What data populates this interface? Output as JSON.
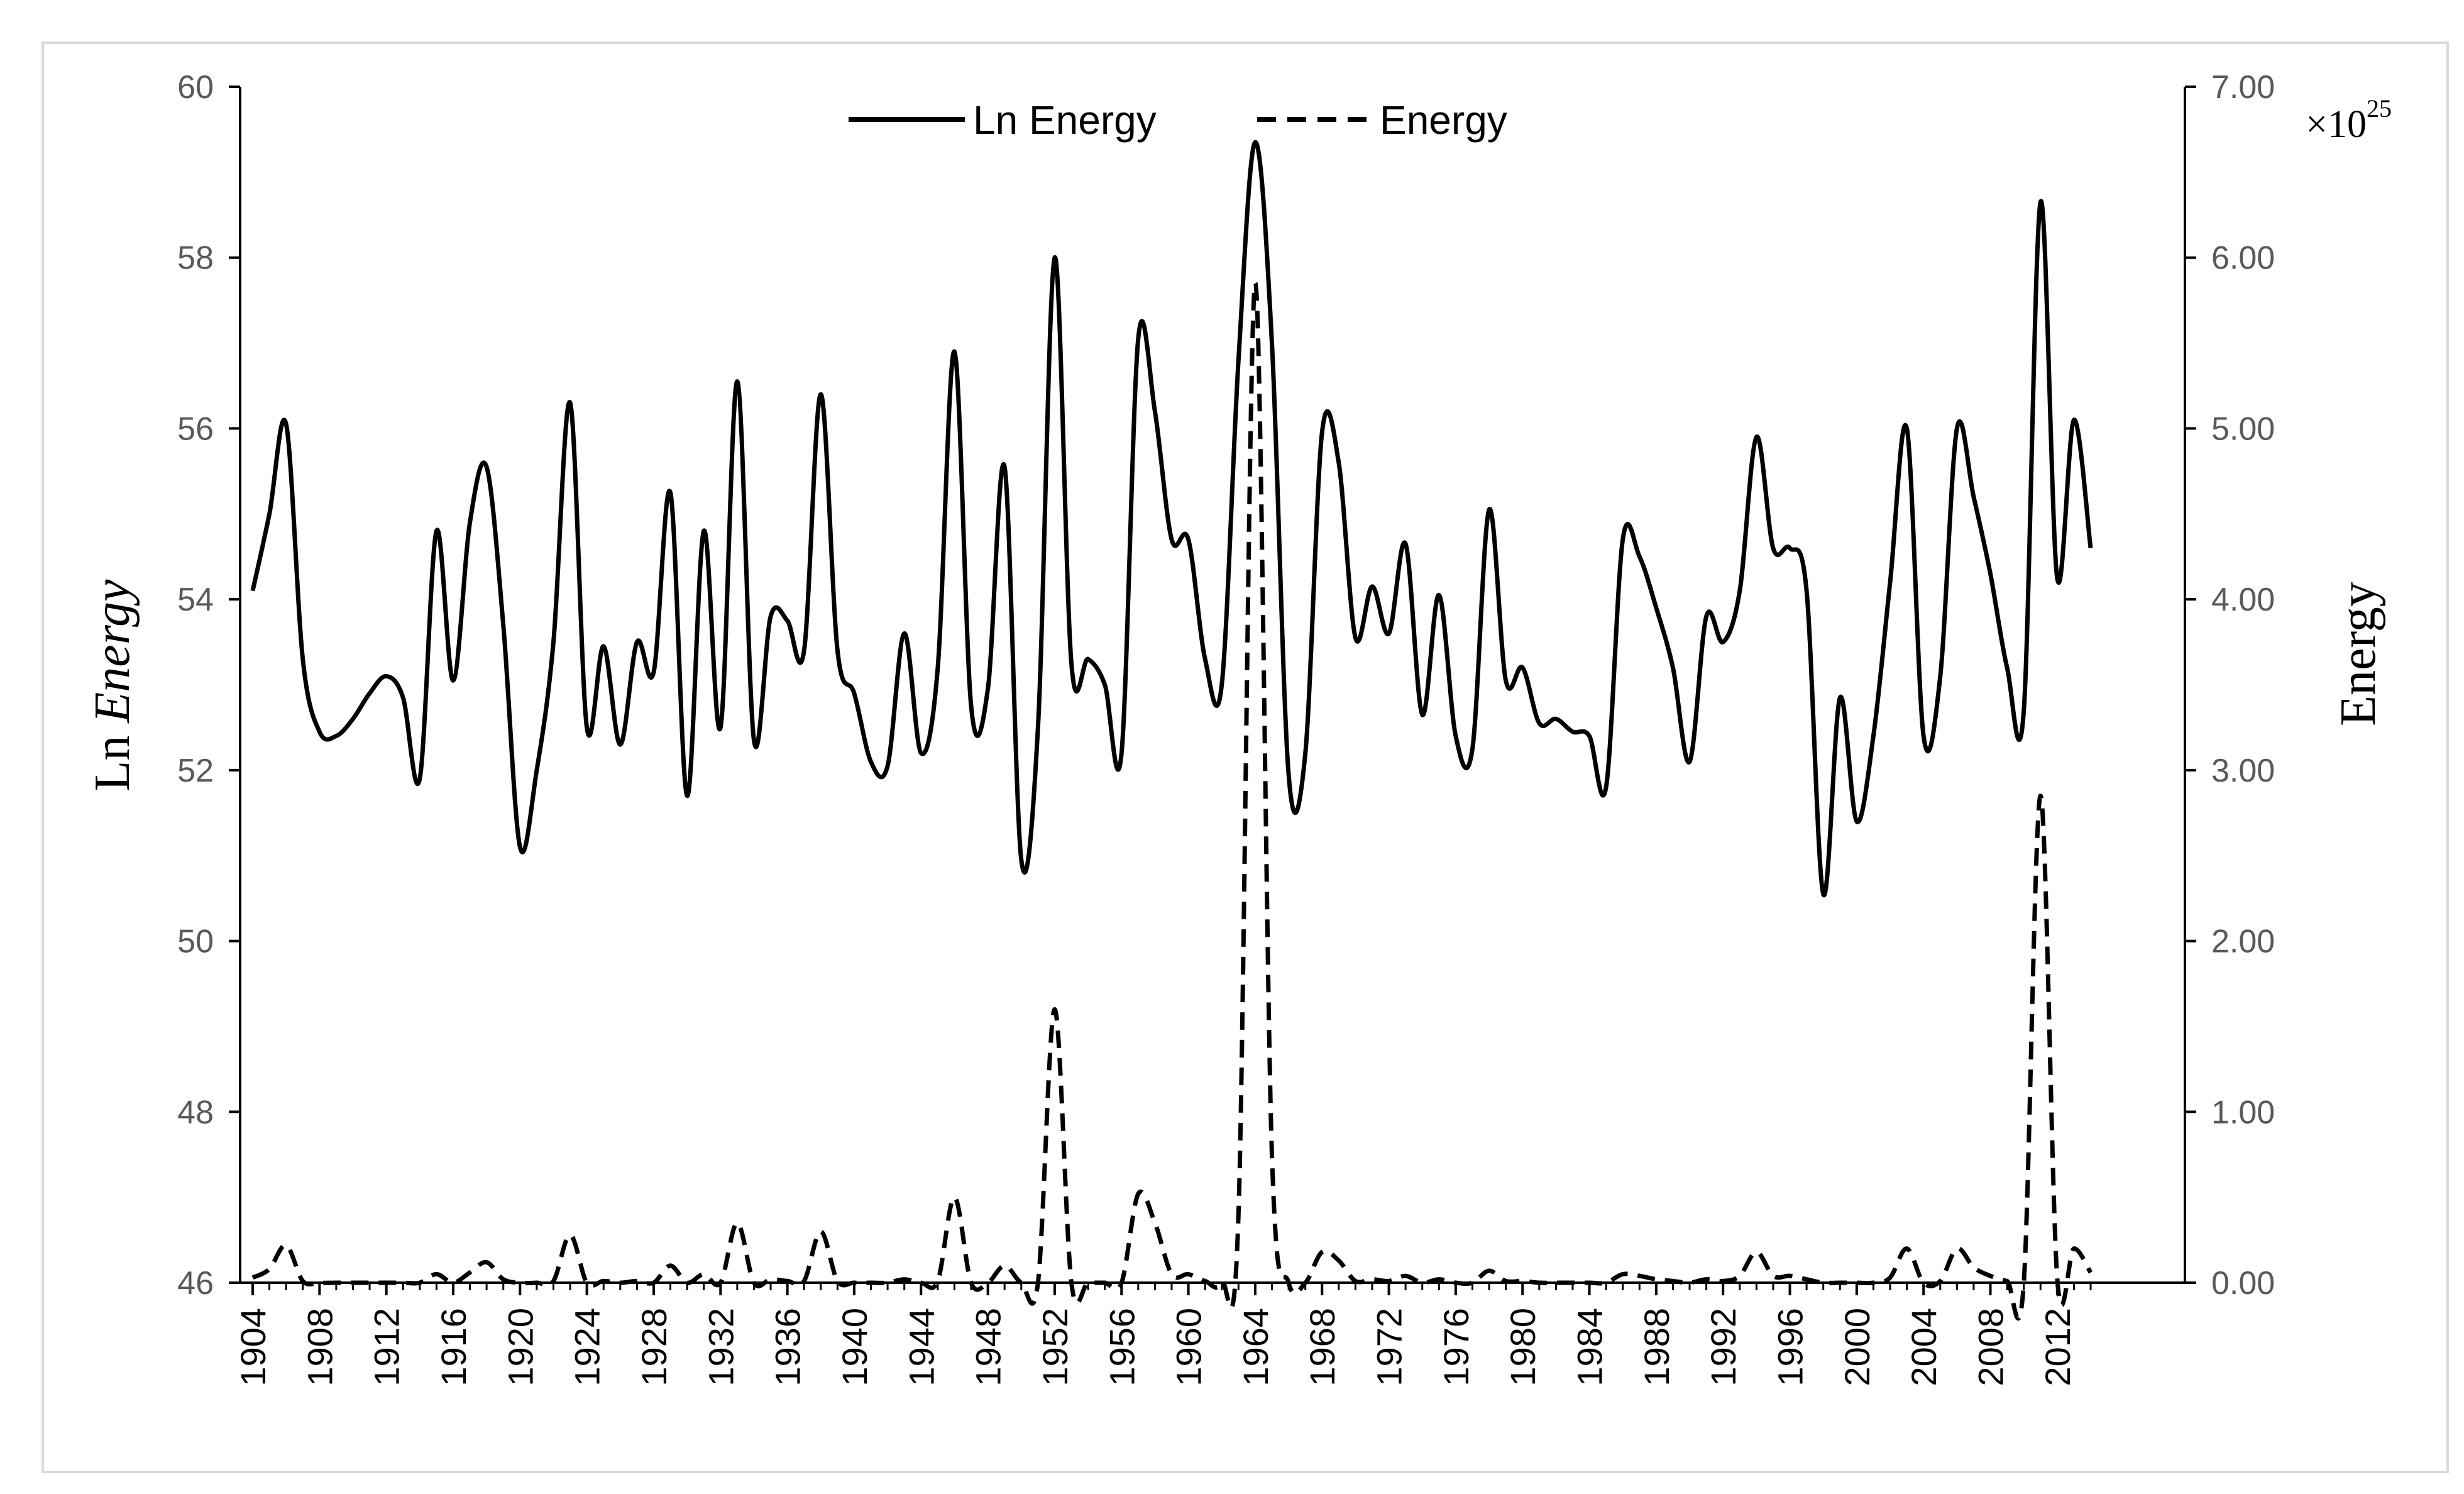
{
  "chart_data": {
    "type": "line",
    "title": "",
    "xlabel": "",
    "ylabel_left_prefix": "Ln ",
    "ylabel_left_italic": "Energy",
    "ylabel_right": "Energy",
    "right_axis_multiplier": "×10",
    "right_axis_exponent": "25",
    "x_range": [
      1904,
      2014
    ],
    "x_ticks": [
      "1904",
      "1908",
      "1912",
      "1916",
      "1920",
      "1924",
      "1928",
      "1932",
      "1936",
      "1940",
      "1944",
      "1948",
      "1952",
      "1956",
      "1960",
      "1964",
      "1968",
      "1972",
      "1976",
      "1980",
      "1984",
      "1988",
      "1992",
      "1996",
      "2000",
      "2004",
      "2008",
      "2012"
    ],
    "y_left_range": [
      46,
      60
    ],
    "y_left_ticks": [
      "46",
      "48",
      "50",
      "52",
      "54",
      "56",
      "58",
      "60"
    ],
    "y_right_range": [
      0,
      7
    ],
    "y_right_ticks": [
      "0.00",
      "1.00",
      "2.00",
      "3.00",
      "4.00",
      "5.00",
      "6.00",
      "7.00"
    ],
    "legend_position": "top-center",
    "series": [
      {
        "name": "Ln Energy",
        "axis": "left",
        "style": "solid",
        "x": [
          1904,
          1905,
          1906,
          1907,
          1908,
          1909,
          1910,
          1911,
          1912,
          1913,
          1914,
          1915,
          1916,
          1917,
          1918,
          1919,
          1920,
          1921,
          1922,
          1923,
          1924,
          1925,
          1926,
          1927,
          1928,
          1929,
          1930,
          1931,
          1932,
          1933,
          1934,
          1935,
          1936,
          1937,
          1938,
          1939,
          1940,
          1941,
          1942,
          1943,
          1944,
          1945,
          1946,
          1947,
          1948,
          1949,
          1950,
          1951,
          1952,
          1953,
          1954,
          1955,
          1956,
          1957,
          1958,
          1959,
          1960,
          1961,
          1962,
          1963,
          1964,
          1965,
          1966,
          1967,
          1968,
          1969,
          1970,
          1971,
          1972,
          1973,
          1974,
          1975,
          1976,
          1977,
          1978,
          1979,
          1980,
          1981,
          1982,
          1983,
          1984,
          1985,
          1986,
          1987,
          1988,
          1989,
          1990,
          1991,
          1992,
          1993,
          1994,
          1995,
          1996,
          1997,
          1998,
          1999,
          2000,
          2001,
          2002,
          2003,
          2004,
          2005,
          2006,
          2007,
          2008,
          2009,
          2010,
          2011,
          2012,
          2013,
          2014
        ],
        "values": [
          54.1,
          55.0,
          56.05,
          53.3,
          52.45,
          52.4,
          52.6,
          52.9,
          53.1,
          52.85,
          51.9,
          54.8,
          53.05,
          54.9,
          55.55,
          53.7,
          51.1,
          52.0,
          53.5,
          56.3,
          52.5,
          53.45,
          52.3,
          53.5,
          53.15,
          55.25,
          51.7,
          54.8,
          52.5,
          56.55,
          52.35,
          53.8,
          53.75,
          53.4,
          56.4,
          53.4,
          52.9,
          52.1,
          52.05,
          53.6,
          52.2,
          53.2,
          56.9,
          52.75,
          52.95,
          55.55,
          50.95,
          52.5,
          58.0,
          53.25,
          53.3,
          53.0,
          52.2,
          57.05,
          56.2,
          54.7,
          54.7,
          53.3,
          53.0,
          56.8,
          59.35,
          57.0,
          51.95,
          52.2,
          55.95,
          55.6,
          53.55,
          54.15,
          53.6,
          54.65,
          52.65,
          54.05,
          52.4,
          52.25,
          55.05,
          53.05,
          53.2,
          52.55,
          52.6,
          52.45,
          52.4,
          51.8,
          54.7,
          54.5,
          53.9,
          53.2,
          52.1,
          53.8,
          53.5,
          54.1,
          55.9,
          54.6,
          54.6,
          54.1,
          50.55,
          52.85,
          51.4,
          52.4,
          54.2,
          56.0,
          52.4,
          53.1,
          56.0,
          55.2,
          54.3,
          53.2,
          52.7,
          58.65,
          54.25,
          56.1,
          54.6
        ]
      },
      {
        "name": "Energy",
        "axis": "right",
        "style": "dashed",
        "x": [
          1904,
          1905,
          1906,
          1907,
          1908,
          1909,
          1910,
          1911,
          1912,
          1913,
          1914,
          1915,
          1916,
          1917,
          1918,
          1919,
          1920,
          1921,
          1922,
          1923,
          1924,
          1925,
          1926,
          1927,
          1928,
          1929,
          1930,
          1931,
          1932,
          1933,
          1934,
          1935,
          1936,
          1937,
          1938,
          1939,
          1940,
          1941,
          1942,
          1943,
          1944,
          1945,
          1946,
          1947,
          1948,
          1949,
          1950,
          1951,
          1952,
          1953,
          1954,
          1955,
          1956,
          1957,
          1958,
          1959,
          1960,
          1961,
          1962,
          1963,
          1964,
          1965,
          1966,
          1967,
          1968,
          1969,
          1970,
          1971,
          1972,
          1973,
          1974,
          1975,
          1976,
          1977,
          1978,
          1979,
          1980,
          1981,
          1982,
          1983,
          1984,
          1985,
          1986,
          1987,
          1988,
          1989,
          1990,
          1991,
          1992,
          1993,
          1994,
          1995,
          1996,
          1997,
          1998,
          1999,
          2000,
          2001,
          2002,
          2003,
          2004,
          2005,
          2006,
          2007,
          2008,
          2009,
          2010,
          2011,
          2012,
          2013,
          2014
        ],
        "values": [
          0.03,
          0.08,
          0.22,
          0.01,
          0.0,
          0.0,
          0.0,
          0.0,
          0.0,
          0.0,
          0.0,
          0.05,
          0.0,
          0.06,
          0.12,
          0.02,
          0.0,
          0.0,
          0.01,
          0.28,
          0.0,
          0.01,
          0.0,
          0.01,
          0.0,
          0.1,
          0.0,
          0.05,
          0.0,
          0.35,
          0.0,
          0.02,
          0.01,
          0.01,
          0.3,
          0.01,
          0.0,
          0.0,
          0.0,
          0.02,
          0.0,
          0.01,
          0.5,
          0.0,
          0.0,
          0.1,
          0.0,
          0.0,
          1.6,
          0.0,
          0.0,
          0.0,
          0.0,
          0.52,
          0.35,
          0.05,
          0.05,
          0.01,
          0.0,
          0.4,
          5.85,
          0.75,
          0.0,
          0.0,
          0.18,
          0.13,
          0.01,
          0.02,
          0.01,
          0.04,
          0.0,
          0.02,
          0.0,
          0.0,
          0.07,
          0.01,
          0.01,
          0.0,
          0.0,
          0.0,
          0.0,
          0.0,
          0.05,
          0.04,
          0.02,
          0.01,
          0.0,
          0.02,
          0.01,
          0.04,
          0.18,
          0.04,
          0.04,
          0.02,
          0.0,
          0.0,
          0.0,
          0.0,
          0.03,
          0.2,
          0.0,
          0.01,
          0.2,
          0.09,
          0.04,
          0.01,
          0.0,
          2.85,
          0.03,
          0.2,
          0.06
        ]
      }
    ]
  }
}
